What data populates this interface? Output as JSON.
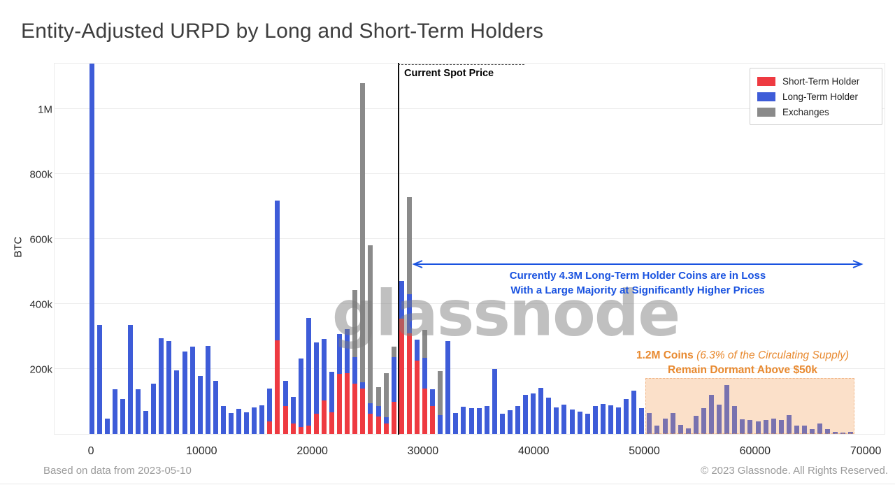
{
  "title": "Entity-Adjusted URPD by Long and Short-Term Holders",
  "watermark": "glassnode",
  "footer": {
    "left": "Based on data from 2023-05-10",
    "right": "© 2023 Glassnode. All Rights Reserved."
  },
  "legend": {
    "items": [
      {
        "label": "Short-Term Holder",
        "color": "#ee3a41"
      },
      {
        "label": "Long-Term Holder",
        "color": "#3e5cd8"
      },
      {
        "label": "Exchanges",
        "color": "#8a8a8a"
      }
    ]
  },
  "annotations": {
    "spot": {
      "label": "Current Spot Price",
      "price": 27700
    },
    "loss": {
      "line1": "Currently 4.3M Long-Term Holder Coins are in Loss",
      "line2": "With a Large Majority at Significantly Higher Prices",
      "color": "#1a53e0",
      "arrow_from_price": 29200,
      "arrow_to_price": 69800
    },
    "dormant": {
      "line1_bold": "1.2M Coins",
      "line1_italic": " (6.3% of the Circulating Supply)",
      "line2": "Remain Dormant Above $50k",
      "color": "#e8892f",
      "region": {
        "from_price": 50000,
        "to_price": 68900,
        "top_btc_k": 172
      }
    }
  },
  "chart_data": {
    "type": "bar",
    "stacked": true,
    "title": "Entity-Adjusted URPD by Long and Short-Term Holders",
    "xlabel": "",
    "ylabel": "BTC",
    "legend_position": "top-right",
    "grid": "horizontal",
    "xlim": [
      -3350,
      71760
    ],
    "ylim_btc_k": [
      0,
      1144
    ],
    "x_ticks": [
      0,
      10000,
      20000,
      30000,
      40000,
      50000,
      60000,
      70000
    ],
    "y_ticks": [
      {
        "v": 200,
        "label": "200k"
      },
      {
        "v": 400,
        "label": "400k"
      },
      {
        "v": 600,
        "label": "600k"
      },
      {
        "v": 800,
        "label": "800k"
      },
      {
        "v": 1000,
        "label": "1M"
      }
    ],
    "bucket_width": 700,
    "series_names": [
      "Short-Term Holder",
      "Long-Term Holder",
      "Exchanges"
    ],
    "units": "thousand BTC per price bucket",
    "bars_format": [
      "price_usd",
      "short_term_holder_k",
      "long_term_holder_k",
      "exchanges_k"
    ],
    "bars": [
      [
        0,
        0,
        1150,
        0
      ],
      [
        700,
        0,
        335,
        0
      ],
      [
        1400,
        0,
        47,
        0
      ],
      [
        2100,
        0,
        137,
        0
      ],
      [
        2800,
        0,
        107,
        0
      ],
      [
        3500,
        0,
        335,
        0
      ],
      [
        4200,
        0,
        137,
        0
      ],
      [
        4900,
        0,
        72,
        0
      ],
      [
        5600,
        0,
        155,
        0
      ],
      [
        6300,
        0,
        295,
        0
      ],
      [
        7000,
        0,
        287,
        0
      ],
      [
        7700,
        0,
        196,
        0
      ],
      [
        8400,
        0,
        254,
        0
      ],
      [
        9100,
        0,
        268,
        0
      ],
      [
        9800,
        0,
        179,
        0
      ],
      [
        10500,
        0,
        270,
        0
      ],
      [
        11200,
        0,
        163,
        0
      ],
      [
        11900,
        0,
        85,
        0
      ],
      [
        12600,
        0,
        64,
        0
      ],
      [
        13300,
        0,
        77,
        0
      ],
      [
        14000,
        0,
        66,
        0
      ],
      [
        14700,
        0,
        81,
        0
      ],
      [
        15400,
        0,
        88,
        0
      ],
      [
        16100,
        38,
        101,
        0
      ],
      [
        16800,
        288,
        430,
        0
      ],
      [
        17500,
        85,
        78,
        0
      ],
      [
        18200,
        32,
        81,
        0
      ],
      [
        18900,
        21,
        212,
        0
      ],
      [
        19600,
        25,
        333,
        0
      ],
      [
        20300,
        62,
        219,
        0
      ],
      [
        21000,
        103,
        190,
        0
      ],
      [
        21700,
        67,
        124,
        0
      ],
      [
        22400,
        185,
        123,
        0
      ],
      [
        23100,
        187,
        135,
        0
      ],
      [
        23800,
        155,
        82,
        207
      ],
      [
        24500,
        140,
        20,
        920
      ],
      [
        25200,
        62,
        33,
        486
      ],
      [
        25900,
        54,
        32,
        58
      ],
      [
        26600,
        32,
        19,
        136
      ],
      [
        27300,
        99,
        138,
        32
      ],
      [
        28000,
        355,
        115,
        0
      ],
      [
        28700,
        310,
        120,
        300
      ],
      [
        29400,
        225,
        65,
        0
      ],
      [
        30100,
        140,
        95,
        85
      ],
      [
        30800,
        85,
        52,
        0
      ],
      [
        31500,
        0,
        58,
        135
      ],
      [
        32200,
        0,
        285,
        0
      ],
      [
        32900,
        0,
        65,
        0
      ],
      [
        33600,
        0,
        83,
        0
      ],
      [
        34300,
        0,
        80,
        0
      ],
      [
        35000,
        0,
        80,
        0
      ],
      [
        35700,
        0,
        86,
        0
      ],
      [
        36400,
        0,
        201,
        0
      ],
      [
        37100,
        0,
        62,
        0
      ],
      [
        37800,
        0,
        73,
        0
      ],
      [
        38500,
        0,
        85,
        0
      ],
      [
        39200,
        0,
        120,
        0
      ],
      [
        39900,
        0,
        124,
        0
      ],
      [
        40600,
        0,
        141,
        0
      ],
      [
        41300,
        0,
        111,
        0
      ],
      [
        42000,
        0,
        81,
        0
      ],
      [
        42700,
        0,
        90,
        0
      ],
      [
        43400,
        0,
        75,
        0
      ],
      [
        44100,
        0,
        68,
        0
      ],
      [
        44800,
        0,
        62,
        0
      ],
      [
        45500,
        0,
        85,
        0
      ],
      [
        46200,
        0,
        92,
        0
      ],
      [
        46900,
        0,
        88,
        0
      ],
      [
        47600,
        0,
        81,
        0
      ],
      [
        48300,
        0,
        107,
        0
      ],
      [
        49000,
        0,
        133,
        0
      ],
      [
        49700,
        0,
        80,
        0
      ],
      [
        50400,
        0,
        65,
        0
      ],
      [
        51100,
        0,
        25,
        0
      ],
      [
        51800,
        0,
        47,
        0
      ],
      [
        52500,
        0,
        64,
        0
      ],
      [
        53200,
        0,
        28,
        0
      ],
      [
        53900,
        0,
        18,
        0
      ],
      [
        54600,
        0,
        55,
        0
      ],
      [
        55300,
        0,
        80,
        0
      ],
      [
        56000,
        0,
        120,
        0
      ],
      [
        56700,
        0,
        90,
        0
      ],
      [
        57400,
        0,
        151,
        0
      ],
      [
        58100,
        0,
        85,
        0
      ],
      [
        58800,
        0,
        45,
        0
      ],
      [
        59500,
        0,
        42,
        0
      ],
      [
        60200,
        0,
        38,
        0
      ],
      [
        60900,
        0,
        42,
        0
      ],
      [
        61600,
        0,
        47,
        0
      ],
      [
        62300,
        0,
        42,
        0
      ],
      [
        63000,
        0,
        58,
        0
      ],
      [
        63700,
        0,
        25,
        0
      ],
      [
        64400,
        0,
        26,
        0
      ],
      [
        65100,
        0,
        15,
        0
      ],
      [
        65800,
        0,
        33,
        0
      ],
      [
        66500,
        0,
        15,
        0
      ],
      [
        67200,
        0,
        6,
        0
      ],
      [
        67900,
        0,
        5,
        0
      ],
      [
        68600,
        0,
        6,
        0
      ]
    ]
  }
}
